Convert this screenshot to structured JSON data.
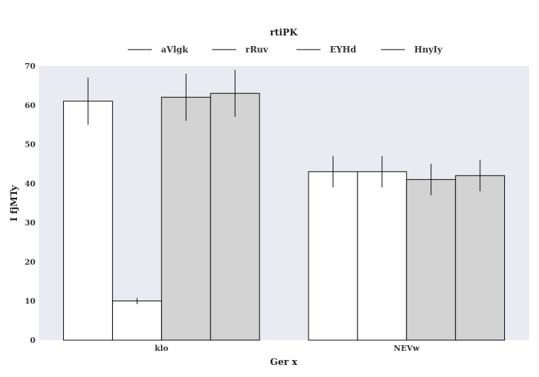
{
  "chart_data": {
    "type": "bar",
    "legend_title": "rtiPK",
    "legend_position": "top-center",
    "xlabel": "Ger  x",
    "ylabel": "I fjMTy",
    "categories": [
      "klo",
      "NEVw"
    ],
    "ylim": [
      0,
      70
    ],
    "yticks": [
      "0",
      "10",
      "20",
      "30",
      "40",
      "50",
      "60",
      "70"
    ],
    "grid": false,
    "background": "#eaeaf2",
    "series": [
      {
        "name": "aVlgk",
        "color": "#ffffff",
        "values": [
          61,
          43
        ],
        "errors": [
          6,
          4
        ]
      },
      {
        "name": "rRuv",
        "color": "#ffffff",
        "values": [
          10,
          43
        ],
        "errors": [
          0.8,
          4
        ]
      },
      {
        "name": "EYHd",
        "color": "#d3d3d3",
        "values": [
          62,
          41
        ],
        "errors": [
          6,
          4
        ]
      },
      {
        "name": "HnyIy",
        "color": "#d3d3d3",
        "values": [
          63,
          42
        ],
        "errors": [
          6,
          4
        ]
      }
    ]
  }
}
